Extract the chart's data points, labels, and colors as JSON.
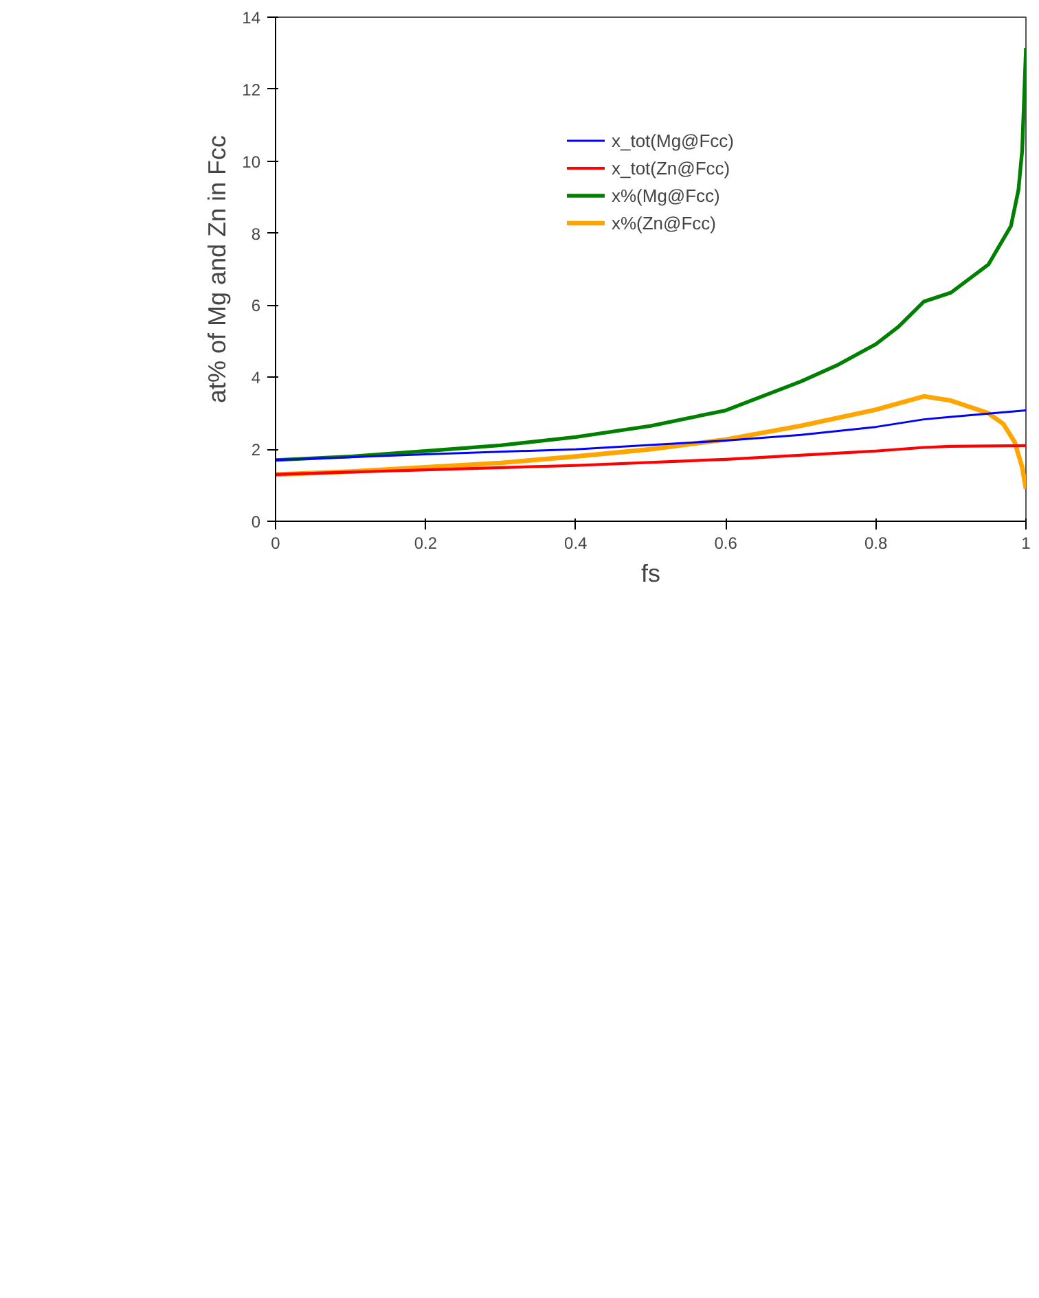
{
  "chart_data": {
    "type": "line",
    "xlabel": "fs",
    "ylabel": "at% of Mg and Zn in Fcc",
    "xlim": [
      0,
      1
    ],
    "ylim": [
      0,
      14
    ],
    "xticks": [
      0,
      0.2,
      0.4,
      0.6,
      0.8,
      1
    ],
    "yticks": [
      0,
      2,
      4,
      6,
      8,
      10,
      12,
      14
    ],
    "grid": false,
    "legend": "top center",
    "marker": "none",
    "line_style": "solid",
    "series": [
      {
        "name": "x_tot(Mg@Fcc)",
        "color": "#0000ff",
        "x": [
          0,
          0.2,
          0.4,
          0.6,
          0.7,
          0.8,
          0.864,
          0.9,
          1.0
        ],
        "values": [
          1.7,
          1.86,
          2.0,
          2.24,
          2.4,
          2.62,
          2.83,
          2.9,
          3.08
        ]
      },
      {
        "name": "x_tot(Zn@Fcc)",
        "color": "#ff0000",
        "x": [
          0,
          0.2,
          0.4,
          0.6,
          0.8,
          0.864,
          0.9,
          1.0
        ],
        "values": [
          1.3,
          1.43,
          1.55,
          1.72,
          1.95,
          2.05,
          2.08,
          2.1
        ]
      },
      {
        "name": "x%(Mg@Fcc)",
        "color": "#008000",
        "x": [
          0,
          0.1,
          0.2,
          0.3,
          0.4,
          0.5,
          0.6,
          0.7,
          0.75,
          0.8,
          0.83,
          0.864,
          0.9,
          0.95,
          0.98,
          0.99,
          0.995,
          1.0
        ],
        "values": [
          1.7,
          1.8,
          1.95,
          2.11,
          2.34,
          2.65,
          3.08,
          3.88,
          4.35,
          4.92,
          5.4,
          6.1,
          6.35,
          7.13,
          8.2,
          9.2,
          10.3,
          13.14
        ]
      },
      {
        "name": "x%(Zn@Fcc)",
        "color": "#ffa500",
        "x": [
          0,
          0.1,
          0.2,
          0.3,
          0.4,
          0.5,
          0.6,
          0.7,
          0.8,
          0.864,
          0.9,
          0.95,
          0.97,
          0.985,
          0.995,
          1.0
        ],
        "values": [
          1.3,
          1.38,
          1.5,
          1.62,
          1.8,
          2.0,
          2.27,
          2.65,
          3.1,
          3.47,
          3.35,
          3.0,
          2.7,
          2.2,
          1.5,
          0.9
        ]
      }
    ]
  }
}
